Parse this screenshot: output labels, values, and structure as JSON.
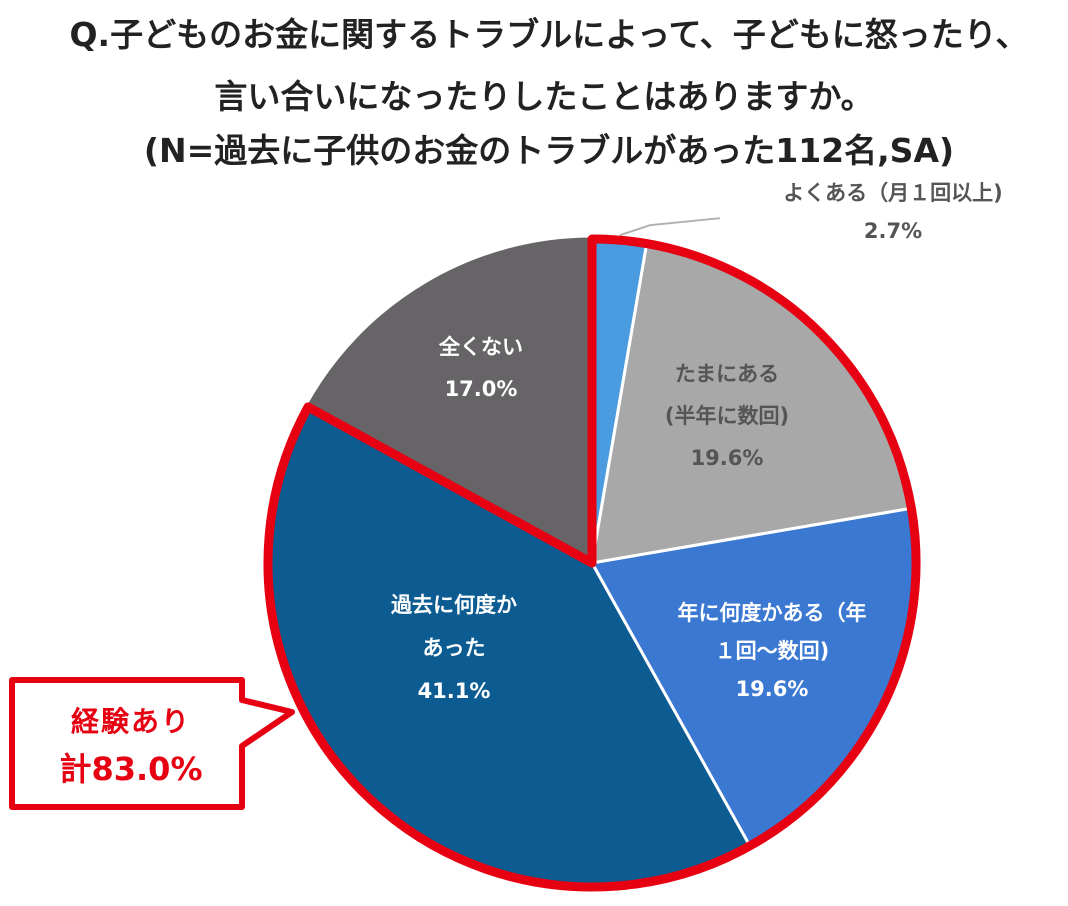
{
  "title_lines": [
    "Q.子どものお金に関するトラブルによって、子どもに怒ったり、",
    "言い合いになったりしたことはありますか。",
    "(N=過去に子供のお金のトラブルがあった112名,SA)"
  ],
  "chart_data": {
    "type": "pie",
    "title": "Q.子どものお金に関するトラブルによって、子どもに怒ったり、言い合いになったりしたことはありますか。(N=過去に子供のお金のトラブルがあった112名,SA)",
    "start_angle_deg": 0,
    "direction": "clockwise",
    "slices": [
      {
        "label_lines": [
          "よくある（月１回以上)"
        ],
        "value": 2.7,
        "value_label": "2.7%",
        "color": "#4a9be0",
        "label_color": "#555555",
        "label_position": "outside"
      },
      {
        "label_lines": [
          "たまにある",
          "(半年に数回)"
        ],
        "value": 19.6,
        "value_label": "19.6%",
        "color": "#a8a8a8",
        "label_color": "#555555",
        "label_position": "inside"
      },
      {
        "label_lines": [
          "年に何度かある（年",
          "１回〜数回)"
        ],
        "value": 19.6,
        "value_label": "19.6%",
        "color": "#3a78d2",
        "label_color": "#ffffff",
        "label_position": "inside"
      },
      {
        "label_lines": [
          "過去に何度か",
          "あった"
        ],
        "value": 41.1,
        "value_label": "41.1%",
        "color": "#0d5c91",
        "label_color": "#ffffff",
        "label_position": "inside"
      },
      {
        "label_lines": [
          "全くない"
        ],
        "value": 17.0,
        "value_label": "17.0%",
        "color": "#676468",
        "label_color": "#ffffff",
        "label_position": "inside"
      }
    ],
    "highlight": {
      "covers_slices": [
        "よくある（月１回以上)",
        "たまにある",
        "年に何度かある（年",
        "過去に何度か"
      ],
      "color": "#e60012"
    },
    "callout": {
      "lines": [
        "経験あり",
        "計83.0%"
      ],
      "color": "#e60012"
    }
  }
}
